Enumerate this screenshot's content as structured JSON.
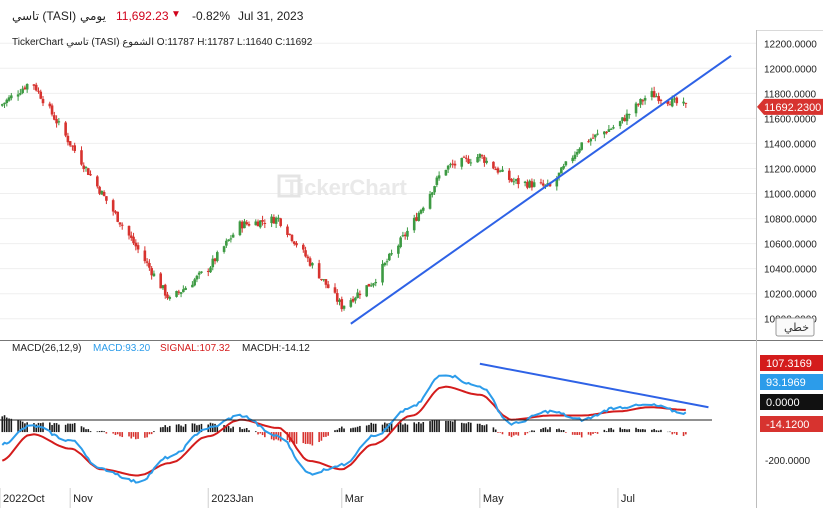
{
  "header": {
    "symbol": "تاسي (TASI)",
    "interval": "يومي",
    "price": "11,692.23",
    "change_pct": "-0.82%",
    "date": "Jul 31, 2023",
    "change_color": "#d0021b"
  },
  "price_panel": {
    "info": "TickerChart تاسي (TASI) الشموع O:11787 H:11787 L:11640 C:11692",
    "last_price_label": "11692.2300",
    "scale_button": "خطي",
    "watermark": "TickerChart"
  },
  "macd_panel": {
    "label": "MACD(26,12,9)",
    "macd_text": "MACD:93.20",
    "signal_text": "SIGNAL:107.32",
    "hist_text": "MACDH:-14.12",
    "tags": {
      "signal": "107.3169",
      "macd": "93.1969",
      "zero": "0.0000",
      "hist": "-14.1200"
    },
    "axis_tick": "-200.0000"
  },
  "colors": {
    "up": "#3d9a43",
    "down": "#d7332f",
    "trendline": "#2e62e6",
    "macd_line": "#2c9cea",
    "signal_line": "#d41c1c",
    "hist_pos": "#1a1a1a",
    "hist_neg": "#d7332f"
  },
  "chart_data": {
    "type": "line",
    "title": "تاسي (TASI)",
    "x": [
      "2022-10-01",
      "2022-10-15",
      "2022-11-01",
      "2022-11-15",
      "2022-12-01",
      "2022-12-15",
      "2023-01-01",
      "2023-01-15",
      "2023-02-01",
      "2023-02-15",
      "2023-03-01",
      "2023-03-15",
      "2023-04-01",
      "2023-04-15",
      "2023-05-01",
      "2023-05-15",
      "2023-06-01",
      "2023-06-15",
      "2023-07-01",
      "2023-07-15",
      "2023-07-31"
    ],
    "series": [
      {
        "values": [
          11700,
          11900,
          11400,
          11000,
          10550,
          10150,
          10400,
          10750,
          10800,
          10450,
          10100,
          10300,
          10750,
          11200,
          11300,
          11100,
          11050,
          11400,
          11550,
          11800,
          11692
        ]
      }
    ],
    "x_tick_labels": [
      "2022Oct",
      "Nov",
      "2023Jan",
      "Mar",
      "May",
      "Jul"
    ],
    "y_tick_labels": [
      "12200.0000",
      "12000.0000",
      "11800.0000",
      "11600.0000",
      "11400.0000",
      "11200.0000",
      "11000.0000",
      "10800.0000",
      "10600.0000",
      "10400.0000",
      "10200.0000",
      "10000.0000"
    ],
    "ylim": [
      9950,
      12250
    ],
    "macd": {
      "macd": [
        -60,
        30,
        -40,
        -180,
        -240,
        -120,
        20,
        80,
        -20,
        -200,
        -160,
        -20,
        120,
        280,
        220,
        40,
        100,
        60,
        120,
        130,
        93
      ],
      "signal": [
        -140,
        -10,
        -80,
        -180,
        -210,
        -150,
        -20,
        60,
        20,
        -140,
        -180,
        -60,
        80,
        220,
        180,
        60,
        80,
        80,
        100,
        120,
        107
      ],
      "ylim": [
        -280,
        300
      ]
    },
    "trendlines": [
      {
        "start": [
          "2023-03-05",
          9960
        ],
        "end": [
          "2023-08-20",
          12100
        ]
      },
      {
        "start": [
          "2023-05-01",
          330
        ],
        "end": [
          "2023-08-10",
          120
        ]
      }
    ]
  }
}
